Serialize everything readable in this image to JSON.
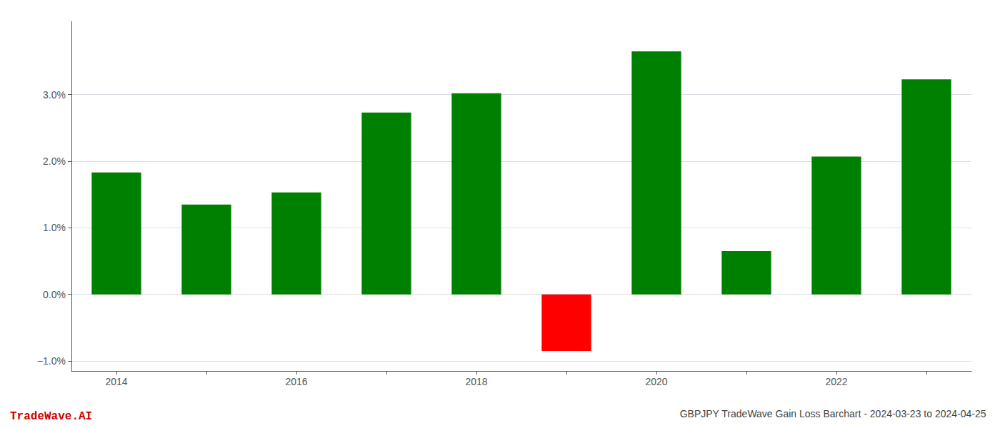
{
  "chart_data": {
    "type": "bar",
    "title": "GBPJPY TradeWave Gain Loss Barchart - 2024-03-23 to 2024-04-25",
    "annotations": [
      {
        "text": "TradeWave.AI",
        "color": "#cc0000"
      }
    ],
    "categories": [
      "2014",
      null,
      "2016",
      null,
      "2018",
      null,
      "2020",
      null,
      "2022",
      null
    ],
    "values": [
      1.83,
      1.35,
      1.53,
      2.73,
      3.02,
      -0.85,
      3.65,
      0.65,
      2.07,
      3.23
    ],
    "colors": [
      "#008000",
      "#008000",
      "#008000",
      "#008000",
      "#008000",
      "#ff0000",
      "#008000",
      "#008000",
      "#008000",
      "#008000"
    ],
    "ylim": [
      -1.15,
      4.1
    ],
    "yticks": [
      {
        "value": -1.0,
        "label": "−1.0%"
      },
      {
        "value": 0.0,
        "label": "0.0%"
      },
      {
        "value": 1.0,
        "label": "1.0%"
      },
      {
        "value": 2.0,
        "label": "2.0%"
      },
      {
        "value": 3.0,
        "label": "3.0%"
      }
    ],
    "grid": true
  }
}
